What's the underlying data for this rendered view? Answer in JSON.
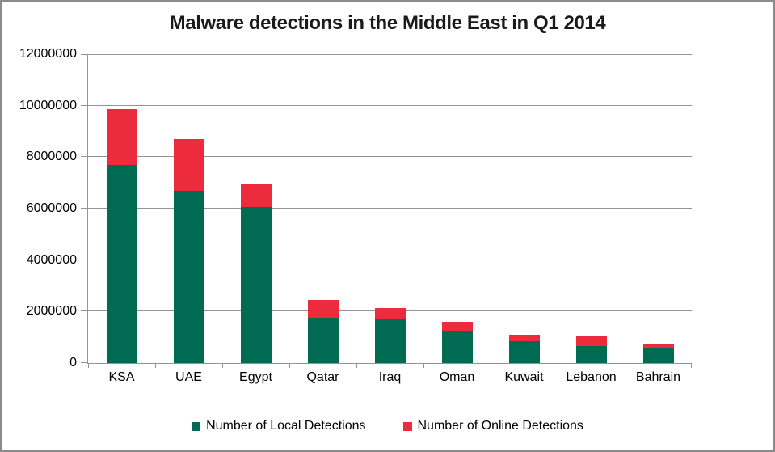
{
  "chart_data": {
    "type": "bar",
    "stacked": true,
    "title": "Malware detections in the Middle East in Q1 2014",
    "categories": [
      "KSA",
      "UAE",
      "Egypt",
      "Qatar",
      "Iraq",
      "Oman",
      "Kuwait",
      "Lebanon",
      "Bahrain"
    ],
    "series": [
      {
        "name": "Number of Local Detections",
        "color": "#006B52",
        "values": [
          7700000,
          6700000,
          6050000,
          1750000,
          1700000,
          1260000,
          860000,
          650000,
          600000
        ]
      },
      {
        "name": "Number of Online Detections",
        "color": "#EC2B3C",
        "values": [
          2150000,
          2000000,
          880000,
          700000,
          430000,
          330000,
          230000,
          420000,
          120000
        ]
      }
    ],
    "ylim": [
      0,
      12000000
    ],
    "ytick_step": 2000000,
    "ytick_labels": [
      "0",
      "2000000",
      "4000000",
      "6000000",
      "8000000",
      "10000000",
      "12000000"
    ],
    "xlabel": "",
    "ylabel": "",
    "grid": true,
    "gridline_color": "#949494",
    "legend_position": "bottom"
  }
}
